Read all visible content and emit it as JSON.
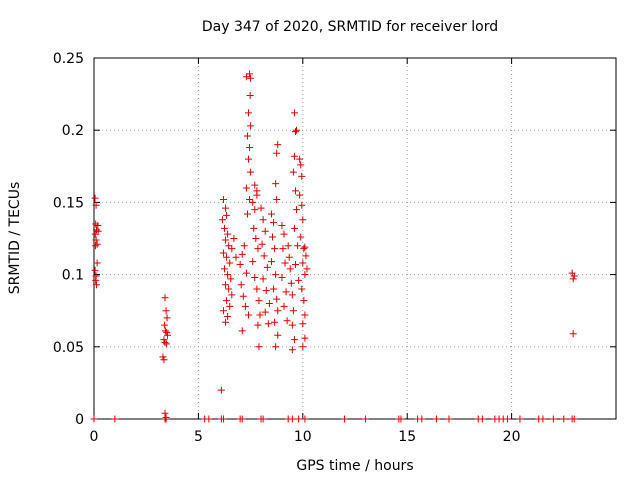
{
  "chart_data": {
    "type": "scatter",
    "title": "Day 347 of 2020, SRMTID for receiver lord",
    "xlabel": "GPS time / hours",
    "ylabel": "SRMTID / TECUs",
    "xlim": [
      0,
      25
    ],
    "ylim": [
      0,
      0.25
    ],
    "x_ticks": [
      0,
      5,
      10,
      15,
      20
    ],
    "x_tick_labels": [
      "0",
      "5",
      "10",
      "15",
      "20"
    ],
    "y_ticks": [
      0,
      0.05,
      0.1,
      0.15,
      0.2,
      0.25
    ],
    "y_tick_labels": [
      "0",
      "0.05",
      "0.1",
      "0.15",
      "0.2",
      "0.25"
    ],
    "grid": true,
    "marker": "plus",
    "color": "#dd0000",
    "series": [
      {
        "name": "SRMTID",
        "points": [
          [
            0.05,
            0.153
          ],
          [
            0.1,
            0.148
          ],
          [
            0.08,
            0.135
          ],
          [
            0.12,
            0.131
          ],
          [
            0.06,
            0.128
          ],
          [
            0.1,
            0.124
          ],
          [
            0.07,
            0.12
          ],
          [
            0.15,
            0.121
          ],
          [
            0.18,
            0.134
          ],
          [
            0.05,
            0.103
          ],
          [
            0.1,
            0.099
          ],
          [
            0.08,
            0.096
          ],
          [
            0.12,
            0.093
          ],
          [
            0.15,
            0.108
          ],
          [
            0.2,
            0.13
          ],
          [
            3.4,
            0.084
          ],
          [
            3.45,
            0.075
          ],
          [
            3.5,
            0.07
          ],
          [
            3.38,
            0.065
          ],
          [
            3.42,
            0.061
          ],
          [
            3.48,
            0.06
          ],
          [
            3.52,
            0.058
          ],
          [
            3.35,
            0.055
          ],
          [
            3.4,
            0.053
          ],
          [
            3.47,
            0.052
          ],
          [
            3.3,
            0.043
          ],
          [
            3.35,
            0.041
          ],
          [
            3.4,
            0.004
          ],
          [
            3.45,
            0.001
          ],
          [
            6.1,
            0.02
          ],
          [
            6.2,
            0.152
          ],
          [
            6.3,
            0.146
          ],
          [
            6.35,
            0.141
          ],
          [
            6.15,
            0.138
          ],
          [
            6.25,
            0.132
          ],
          [
            6.4,
            0.128
          ],
          [
            6.3,
            0.124
          ],
          [
            6.45,
            0.12
          ],
          [
            6.2,
            0.115
          ],
          [
            6.35,
            0.112
          ],
          [
            6.5,
            0.108
          ],
          [
            6.25,
            0.104
          ],
          [
            6.4,
            0.1
          ],
          [
            6.55,
            0.097
          ],
          [
            6.3,
            0.093
          ],
          [
            6.45,
            0.09
          ],
          [
            6.6,
            0.086
          ],
          [
            6.35,
            0.082
          ],
          [
            6.5,
            0.078
          ],
          [
            6.2,
            0.075
          ],
          [
            6.4,
            0.071
          ],
          [
            6.3,
            0.067
          ],
          [
            6.6,
            0.118
          ],
          [
            6.7,
            0.125
          ],
          [
            6.8,
            0.112
          ],
          [
            7.0,
            0.107
          ],
          [
            7.1,
            0.114
          ],
          [
            7.2,
            0.12
          ],
          [
            7.3,
            0.101
          ],
          [
            7.05,
            0.093
          ],
          [
            7.15,
            0.085
          ],
          [
            7.25,
            0.078
          ],
          [
            7.4,
            0.072
          ],
          [
            7.1,
            0.061
          ],
          [
            7.35,
            0.142
          ],
          [
            7.45,
            0.152
          ],
          [
            7.3,
            0.16
          ],
          [
            7.5,
            0.171
          ],
          [
            7.4,
            0.18
          ],
          [
            7.45,
            0.188
          ],
          [
            7.35,
            0.196
          ],
          [
            7.5,
            0.203
          ],
          [
            7.4,
            0.212
          ],
          [
            7.48,
            0.224
          ],
          [
            7.3,
            0.237
          ],
          [
            7.45,
            0.239
          ],
          [
            7.5,
            0.236
          ],
          [
            7.6,
            0.15
          ],
          [
            7.7,
            0.145
          ],
          [
            7.8,
            0.155
          ],
          [
            7.65,
            0.132
          ],
          [
            7.75,
            0.125
          ],
          [
            7.85,
            0.118
          ],
          [
            7.6,
            0.109
          ],
          [
            7.7,
            0.098
          ],
          [
            7.8,
            0.09
          ],
          [
            7.9,
            0.082
          ],
          [
            7.95,
            0.072
          ],
          [
            7.85,
            0.065
          ],
          [
            7.9,
            0.05
          ],
          [
            7.7,
            0.162
          ],
          [
            7.8,
            0.158
          ],
          [
            8.0,
            0.146
          ],
          [
            8.1,
            0.138
          ],
          [
            8.2,
            0.13
          ],
          [
            8.05,
            0.121
          ],
          [
            8.15,
            0.113
          ],
          [
            8.3,
            0.105
          ],
          [
            8.1,
            0.097
          ],
          [
            8.25,
            0.089
          ],
          [
            8.4,
            0.08
          ],
          [
            8.2,
            0.074
          ],
          [
            8.35,
            0.066
          ],
          [
            8.5,
            0.142
          ],
          [
            8.6,
            0.136
          ],
          [
            8.55,
            0.126
          ],
          [
            8.65,
            0.118
          ],
          [
            8.5,
            0.109
          ],
          [
            8.7,
            0.1
          ],
          [
            8.6,
            0.09
          ],
          [
            8.75,
            0.083
          ],
          [
            8.8,
            0.075
          ],
          [
            8.65,
            0.067
          ],
          [
            8.8,
            0.058
          ],
          [
            8.7,
            0.05
          ],
          [
            8.75,
            0.152
          ],
          [
            8.7,
            0.163
          ],
          [
            8.8,
            0.19
          ],
          [
            8.75,
            0.184
          ],
          [
            9.0,
            0.134
          ],
          [
            9.1,
            0.128
          ],
          [
            9.05,
            0.118
          ],
          [
            9.15,
            0.108
          ],
          [
            9.0,
            0.098
          ],
          [
            9.2,
            0.088
          ],
          [
            9.1,
            0.078
          ],
          [
            9.25,
            0.068
          ],
          [
            9.3,
            0.12
          ],
          [
            9.35,
            0.112
          ],
          [
            9.4,
            0.104
          ],
          [
            9.45,
            0.094
          ],
          [
            9.5,
            0.086
          ],
          [
            9.55,
            0.075
          ],
          [
            9.5,
            0.065
          ],
          [
            9.6,
            0.055
          ],
          [
            9.5,
            0.048
          ],
          [
            9.6,
            0.212
          ],
          [
            9.65,
            0.199
          ],
          [
            9.7,
            0.2
          ],
          [
            9.6,
            0.182
          ],
          [
            9.55,
            0.171
          ],
          [
            9.65,
            0.158
          ],
          [
            9.7,
            0.145
          ],
          [
            9.6,
            0.132
          ],
          [
            9.75,
            0.12
          ],
          [
            9.65,
            0.107
          ],
          [
            9.8,
            0.096
          ],
          [
            9.85,
            0.18
          ],
          [
            9.9,
            0.176
          ],
          [
            9.95,
            0.168
          ],
          [
            9.85,
            0.155
          ],
          [
            9.95,
            0.148
          ],
          [
            10.0,
            0.138
          ],
          [
            9.9,
            0.126
          ],
          [
            10.05,
            0.118
          ],
          [
            10.0,
            0.108
          ],
          [
            10.1,
            0.1
          ],
          [
            9.95,
            0.09
          ],
          [
            10.05,
            0.082
          ],
          [
            10.1,
            0.072
          ],
          [
            10.0,
            0.066
          ],
          [
            10.1,
            0.056
          ],
          [
            10.0,
            0.05
          ],
          [
            10.15,
            0.113
          ],
          [
            10.2,
            0.104
          ],
          [
            10.1,
            0.119
          ],
          [
            22.9,
            0.101
          ],
          [
            23.0,
            0.099
          ],
          [
            22.95,
            0.097
          ],
          [
            22.95,
            0.059
          ],
          [
            0.0,
            0.0
          ],
          [
            1.0,
            0.0
          ],
          [
            3.4,
            0.0
          ],
          [
            3.45,
            0.0
          ],
          [
            5.3,
            0.0
          ],
          [
            5.5,
            0.0
          ],
          [
            6.1,
            0.0
          ],
          [
            6.2,
            0.0
          ],
          [
            7.0,
            0.0
          ],
          [
            7.1,
            0.0
          ],
          [
            8.0,
            0.0
          ],
          [
            8.1,
            0.0
          ],
          [
            9.3,
            0.0
          ],
          [
            9.5,
            0.0
          ],
          [
            9.8,
            0.0
          ],
          [
            10.1,
            0.0
          ],
          [
            12.0,
            0.0
          ],
          [
            13.0,
            0.0
          ],
          [
            14.6,
            0.0
          ],
          [
            14.7,
            0.0
          ],
          [
            15.5,
            0.0
          ],
          [
            15.7,
            0.0
          ],
          [
            16.4,
            0.0
          ],
          [
            17.0,
            0.0
          ],
          [
            18.4,
            0.0
          ],
          [
            18.6,
            0.0
          ],
          [
            19.2,
            0.0
          ],
          [
            19.4,
            0.0
          ],
          [
            19.6,
            0.0
          ],
          [
            19.8,
            0.0
          ],
          [
            20.4,
            0.0
          ],
          [
            21.3,
            0.0
          ],
          [
            21.5,
            0.0
          ],
          [
            22.0,
            0.0
          ],
          [
            22.5,
            0.0
          ],
          [
            22.9,
            0.0
          ],
          [
            23.0,
            0.0
          ]
        ]
      }
    ]
  }
}
